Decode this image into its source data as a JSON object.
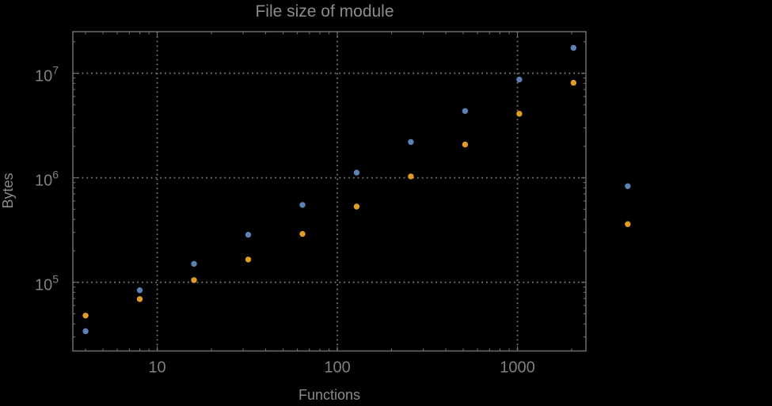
{
  "chart_data": {
    "type": "scatter",
    "title": "File size of module",
    "xlabel": "Functions",
    "ylabel": "Bytes",
    "x_scale": "log",
    "y_scale": "log",
    "xlim": [
      3.4,
      2400
    ],
    "ylim": [
      22000,
      25000000
    ],
    "grid": "dotted gridlines at major ticks only",
    "legend": "none",
    "x": [
      4,
      8,
      16,
      32,
      64,
      128,
      256,
      512,
      1024,
      2048,
      4096
    ],
    "series": [
      {
        "name": "blue-series",
        "color": "#5e81b5",
        "values": [
          34000,
          84000,
          150000,
          285000,
          550000,
          1120000,
          2200000,
          4350000,
          8700000,
          17500000,
          830000
        ]
      },
      {
        "name": "orange-series",
        "color": "#e19c24",
        "values": [
          48000,
          69000,
          105000,
          165000,
          290000,
          530000,
          1030000,
          2080000,
          4100000,
          8100000,
          360000
        ]
      }
    ],
    "x_major_ticks": [
      10,
      100,
      1000
    ],
    "x_tick_labels": [
      "10",
      "100",
      "1000"
    ],
    "y_major_ticks": [
      100000,
      1000000,
      10000000
    ],
    "y_tick_labels": [
      {
        "base": "10",
        "exp": "5"
      },
      {
        "base": "10",
        "exp": "6"
      },
      {
        "base": "10",
        "exp": "7"
      }
    ]
  },
  "colors": {
    "background": "#000000",
    "frame": "#6e6e6e",
    "grid": "#777777",
    "tick_label": "#808080",
    "axis_label": "#8a8a8a",
    "title": "#8b8b8b"
  }
}
